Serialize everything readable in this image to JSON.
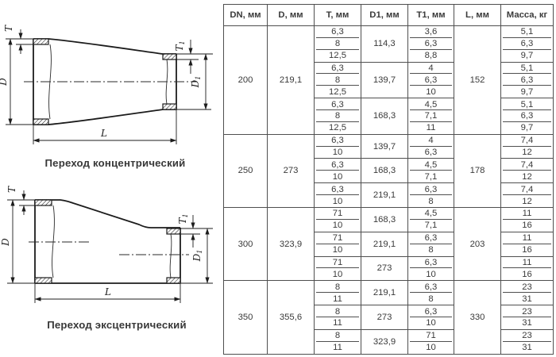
{
  "colors": {
    "line": "#1c1c1c",
    "table_border": "#4f4f4f",
    "text": "#3a3a3a"
  },
  "diagrams": [
    {
      "caption": "Переход концентрический",
      "labels": {
        "t": "T",
        "d": "D",
        "l": "L",
        "t1": {
          "base": "T",
          "sub": "1"
        },
        "d1": {
          "base": "D",
          "sub": "1"
        }
      }
    },
    {
      "caption": "Переход эксцентрический",
      "labels": {
        "t": "T",
        "d": "D",
        "l": "L",
        "t1": {
          "base": "T",
          "sub": "1"
        },
        "d1": {
          "base": "D",
          "sub": "1"
        }
      }
    }
  ],
  "table": {
    "headers": [
      "DN, мм",
      "D, мм",
      "T, мм",
      "D1, мм",
      "T1, мм",
      "L, мм",
      "Масса, кг"
    ],
    "groups": [
      {
        "dn": "200",
        "d": "219,1",
        "l": "152",
        "subgroups": [
          {
            "d1": "114,3",
            "rows": [
              {
                "t": "6,3",
                "t1": "3,6",
                "mass": "5,1"
              },
              {
                "t": "8",
                "t1": "6,3",
                "mass": "6,3"
              },
              {
                "t": "12,5",
                "t1": "8,8",
                "mass": "9,7"
              }
            ]
          },
          {
            "d1": "139,7",
            "rows": [
              {
                "t": "6,3",
                "t1": "4",
                "mass": "5,1"
              },
              {
                "t": "8",
                "t1": "6,3",
                "mass": "6,3"
              },
              {
                "t": "12,5",
                "t1": "10",
                "mass": "9,7"
              }
            ]
          },
          {
            "d1": "168,3",
            "rows": [
              {
                "t": "6,3",
                "t1": "4,5",
                "mass": "5,1"
              },
              {
                "t": "8",
                "t1": "7,1",
                "mass": "6,3"
              },
              {
                "t": "12,5",
                "t1": "11",
                "mass": "9,7"
              }
            ]
          }
        ]
      },
      {
        "dn": "250",
        "d": "273",
        "l": "178",
        "subgroups": [
          {
            "d1": "139,7",
            "rows": [
              {
                "t": "6,3",
                "t1": "4",
                "mass": "7,4"
              },
              {
                "t": "10",
                "t1": "6,3",
                "mass": "12"
              }
            ]
          },
          {
            "d1": "168,3",
            "rows": [
              {
                "t": "6,3",
                "t1": "4,5",
                "mass": "7,4"
              },
              {
                "t": "10",
                "t1": "7,1",
                "mass": "12"
              }
            ]
          },
          {
            "d1": "219,1",
            "rows": [
              {
                "t": "6,3",
                "t1": "6,3",
                "mass": "7,4"
              },
              {
                "t": "10",
                "t1": "8",
                "mass": "12"
              }
            ]
          }
        ]
      },
      {
        "dn": "300",
        "d": "323,9",
        "l": "203",
        "subgroups": [
          {
            "d1": "168,3",
            "rows": [
              {
                "t": "71",
                "t1": "4,5",
                "mass": "11"
              },
              {
                "t": "10",
                "t1": "7,1",
                "mass": "16"
              }
            ]
          },
          {
            "d1": "219,1",
            "rows": [
              {
                "t": "71",
                "t1": "6,3",
                "mass": "11"
              },
              {
                "t": "10",
                "t1": "8",
                "mass": "16"
              }
            ]
          },
          {
            "d1": "273",
            "rows": [
              {
                "t": "71",
                "t1": "6,3",
                "mass": "11"
              },
              {
                "t": "10",
                "t1": "10",
                "mass": "16"
              }
            ]
          }
        ]
      },
      {
        "dn": "350",
        "d": "355,6",
        "l": "330",
        "subgroups": [
          {
            "d1": "219,1",
            "rows": [
              {
                "t": "8",
                "t1": "6,3",
                "mass": "23"
              },
              {
                "t": "11",
                "t1": "8",
                "mass": "31"
              }
            ]
          },
          {
            "d1": "273",
            "rows": [
              {
                "t": "8",
                "t1": "6,3",
                "mass": "23"
              },
              {
                "t": "11",
                "t1": "10",
                "mass": "31"
              }
            ]
          },
          {
            "d1": "323,9",
            "rows": [
              {
                "t": "8",
                "t1": "71",
                "mass": "23"
              },
              {
                "t": "11",
                "t1": "10",
                "mass": "31"
              }
            ]
          }
        ]
      }
    ]
  }
}
